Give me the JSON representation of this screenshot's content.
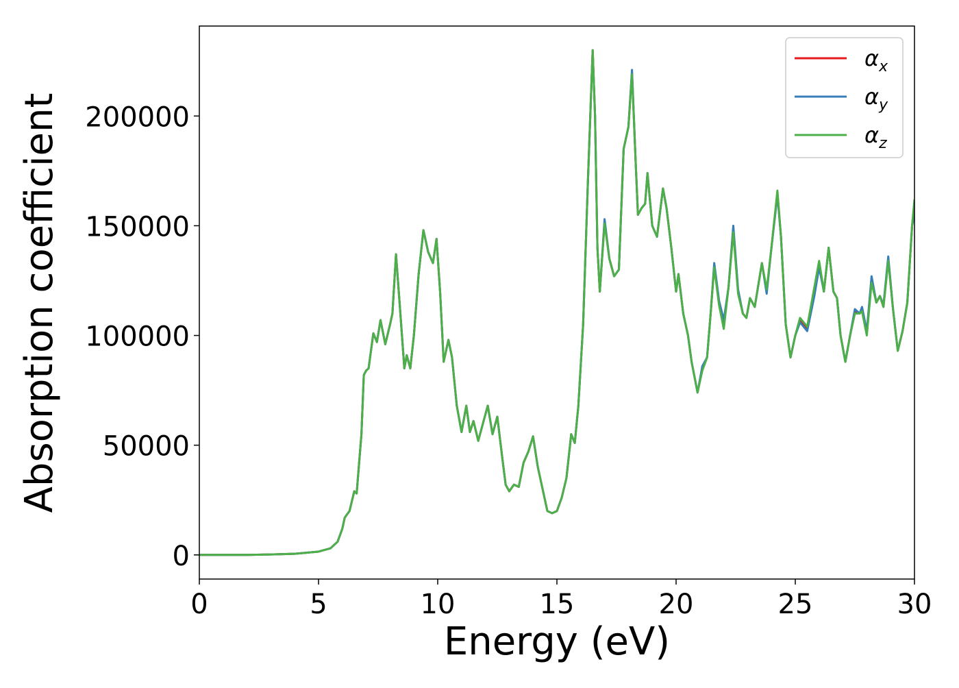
{
  "chart_data": {
    "type": "line",
    "xlabel": "Energy (eV)",
    "ylabel": "Absorption coefficient",
    "x": [
      0,
      1,
      2,
      3,
      4,
      5,
      5.5,
      5.8,
      6.0,
      6.1,
      6.3,
      6.5,
      6.6,
      6.8,
      6.9,
      7.0,
      7.1,
      7.3,
      7.45,
      7.6,
      7.8,
      8.0,
      8.1,
      8.25,
      8.4,
      8.6,
      8.7,
      8.85,
      9.0,
      9.2,
      9.4,
      9.6,
      9.8,
      9.95,
      10.1,
      10.25,
      10.45,
      10.6,
      10.8,
      11.0,
      11.2,
      11.35,
      11.5,
      11.7,
      11.9,
      12.1,
      12.3,
      12.5,
      12.7,
      12.85,
      13.0,
      13.2,
      13.4,
      13.6,
      13.8,
      14.0,
      14.2,
      14.4,
      14.6,
      14.8,
      15.0,
      15.2,
      15.4,
      15.6,
      15.75,
      15.9,
      16.1,
      16.3,
      16.5,
      16.6,
      16.7,
      16.8,
      17.0,
      17.2,
      17.4,
      17.6,
      17.8,
      18.0,
      18.15,
      18.3,
      18.4,
      18.55,
      18.7,
      18.8,
      19.0,
      19.2,
      19.45,
      19.6,
      19.8,
      20.0,
      20.1,
      20.3,
      20.5,
      20.65,
      20.9,
      21.1,
      21.3,
      21.45,
      21.6,
      21.8,
      22.0,
      22.2,
      22.4,
      22.6,
      22.8,
      22.95,
      23.1,
      23.3,
      23.6,
      23.8,
      24.0,
      24.25,
      24.4,
      24.6,
      24.8,
      25.0,
      25.2,
      25.5,
      25.8,
      26.0,
      26.2,
      26.4,
      26.6,
      26.75,
      26.9,
      27.1,
      27.3,
      27.5,
      27.7,
      27.8,
      28.0,
      28.2,
      28.4,
      28.55,
      28.7,
      28.9,
      29.1,
      29.3,
      29.5,
      29.7,
      29.9,
      30
    ],
    "series": [
      {
        "name": "αx",
        "color": "#e41a1c",
        "values": [
          0,
          0,
          0,
          200,
          500,
          1500,
          3000,
          6000,
          12000,
          17000,
          20000,
          29000,
          28000,
          55000,
          82000,
          84000,
          85000,
          101000,
          97000,
          107000,
          96000,
          105000,
          110000,
          137000,
          115000,
          85000,
          91000,
          85000,
          100000,
          128000,
          148000,
          138000,
          133000,
          144000,
          120000,
          88000,
          98000,
          90000,
          68000,
          56000,
          68000,
          56000,
          61000,
          52000,
          60000,
          68000,
          55000,
          63000,
          45000,
          32000,
          29000,
          32000,
          31000,
          42000,
          47000,
          54000,
          40000,
          30000,
          20000,
          19000,
          20000,
          26000,
          35000,
          55000,
          51000,
          68000,
          105000,
          170000,
          230000,
          200000,
          140000,
          120000,
          152000,
          135000,
          127000,
          130000,
          185000,
          195000,
          220000,
          180000,
          155000,
          158000,
          160000,
          174000,
          150000,
          145000,
          167000,
          158000,
          140000,
          120000,
          128000,
          110000,
          100000,
          88000,
          74000,
          85000,
          90000,
          110000,
          132000,
          115000,
          105000,
          122000,
          149000,
          120000,
          110000,
          108000,
          117000,
          113000,
          133000,
          120000,
          140000,
          165000,
          145000,
          105000,
          90000,
          100000,
          107000,
          103000,
          120000,
          133000,
          120000,
          140000,
          120000,
          117000,
          100000,
          88000,
          100000,
          111000,
          110000,
          112000,
          101000,
          126000,
          115000,
          118000,
          113000,
          135000,
          112000,
          93000,
          102000,
          115000,
          150000,
          160000
        ]
      },
      {
        "name": "αy",
        "color": "#377eb8",
        "values": [
          0,
          0,
          0,
          200,
          500,
          1500,
          3000,
          6000,
          12000,
          17000,
          20000,
          29000,
          28000,
          55000,
          82000,
          84000,
          85000,
          101000,
          97000,
          107000,
          96000,
          105000,
          110000,
          137000,
          115000,
          85000,
          91000,
          85000,
          100000,
          128000,
          148000,
          138000,
          133000,
          144000,
          120000,
          88000,
          98000,
          90000,
          68000,
          56000,
          68000,
          56000,
          61000,
          52000,
          60000,
          68000,
          55000,
          63000,
          45000,
          32000,
          29000,
          32000,
          31000,
          42000,
          47000,
          54000,
          40000,
          30000,
          20000,
          19000,
          20000,
          26000,
          35000,
          55000,
          51000,
          68000,
          105000,
          170000,
          230000,
          200000,
          140000,
          120000,
          153000,
          135000,
          127000,
          130000,
          185000,
          195000,
          221000,
          180000,
          155000,
          158000,
          160000,
          174000,
          150000,
          145000,
          167000,
          158000,
          140000,
          120000,
          128000,
          110000,
          100000,
          88000,
          74000,
          86000,
          90000,
          110000,
          133000,
          116000,
          107000,
          122000,
          150000,
          121000,
          110000,
          108000,
          117000,
          113000,
          133000,
          119000,
          140000,
          164000,
          145000,
          105000,
          90000,
          100000,
          106000,
          102000,
          118000,
          131000,
          120000,
          140000,
          120000,
          117000,
          100000,
          88000,
          100000,
          112000,
          110000,
          113000,
          102000,
          127000,
          115000,
          118000,
          114000,
          136000,
          112000,
          93000,
          102000,
          115000,
          150000,
          155000
        ]
      },
      {
        "name": "αz",
        "color": "#4daf4a",
        "values": [
          0,
          0,
          0,
          200,
          500,
          1500,
          3000,
          6000,
          12000,
          17000,
          20000,
          29000,
          28000,
          55000,
          82000,
          84000,
          85000,
          101000,
          97000,
          107000,
          96000,
          105000,
          110000,
          137000,
          115000,
          85000,
          91000,
          85000,
          100000,
          128000,
          148000,
          138000,
          133000,
          144000,
          120000,
          88000,
          98000,
          90000,
          68000,
          56000,
          68000,
          56000,
          61000,
          52000,
          60000,
          68000,
          55000,
          63000,
          45000,
          32000,
          29000,
          32000,
          31000,
          42000,
          47000,
          54000,
          40000,
          30000,
          20000,
          19000,
          20000,
          26000,
          35000,
          55000,
          51000,
          68000,
          105000,
          170000,
          230000,
          200000,
          140000,
          120000,
          151000,
          135000,
          127000,
          130000,
          185000,
          195000,
          219000,
          180000,
          155000,
          158000,
          160000,
          174000,
          150000,
          145000,
          167000,
          158000,
          140000,
          120000,
          128000,
          110000,
          100000,
          88000,
          74000,
          84000,
          90000,
          110000,
          131000,
          114000,
          103000,
          122000,
          147000,
          119000,
          110000,
          108000,
          117000,
          113000,
          133000,
          121000,
          140000,
          166000,
          145000,
          105000,
          90000,
          100000,
          108000,
          104000,
          122000,
          134000,
          120000,
          140000,
          120000,
          117000,
          100000,
          88000,
          100000,
          110000,
          110000,
          111000,
          100000,
          124000,
          115000,
          118000,
          113000,
          134000,
          112000,
          93000,
          102000,
          115000,
          150000,
          162000
        ]
      }
    ],
    "xlim": [
      0,
      30
    ],
    "xticks": [
      0,
      5,
      10,
      15,
      20,
      25,
      30
    ],
    "ylim": [
      -11000,
      241000
    ],
    "yticks": [
      0,
      50000,
      100000,
      150000,
      200000
    ],
    "legend": "upper right"
  }
}
